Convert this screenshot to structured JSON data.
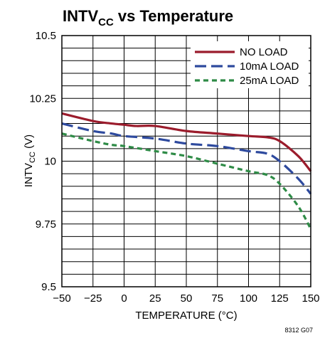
{
  "chart_data": {
    "type": "line",
    "title": {
      "main": "INTV",
      "sub": "CC",
      "rest": " vs Temperature"
    },
    "xlabel": "TEMPERATURE (°C)",
    "ylabel": {
      "main": "INTV",
      "sub": "CC",
      "rest": " (V)"
    },
    "xlim": [
      -50,
      150
    ],
    "ylim": [
      9.5,
      10.5
    ],
    "xticks": [
      -50,
      -25,
      0,
      25,
      50,
      75,
      100,
      125,
      150
    ],
    "xtick_labels": [
      "−50",
      "−25",
      "0",
      "25",
      "50",
      "75",
      "100",
      "125",
      "150"
    ],
    "yticks": [
      9.5,
      9.75,
      10,
      10.25,
      10.5
    ],
    "ytick_labels": [
      "9.5",
      "9.75",
      "10",
      "10.25",
      "10.5"
    ],
    "grid": true,
    "legend_position": "top-right",
    "figure_id": "8312 G07",
    "series": [
      {
        "name": "NO LOAD",
        "color": "#9b1c2c",
        "dash": "solid",
        "x": [
          -50,
          -25,
          -10,
          0,
          10,
          25,
          50,
          75,
          100,
          115,
          125,
          140,
          150
        ],
        "y": [
          10.19,
          10.16,
          10.15,
          10.145,
          10.14,
          10.14,
          10.12,
          10.11,
          10.1,
          10.095,
          10.08,
          10.02,
          9.96
        ]
      },
      {
        "name": "10mA LOAD",
        "color": "#2e4a9e",
        "dash": "long",
        "x": [
          -50,
          -25,
          -10,
          0,
          25,
          50,
          75,
          100,
          115,
          125,
          140,
          150
        ],
        "y": [
          10.15,
          10.12,
          10.11,
          10.1,
          10.09,
          10.07,
          10.06,
          10.04,
          10.03,
          10.0,
          9.93,
          9.87
        ]
      },
      {
        "name": "25mA LOAD",
        "color": "#2e8b46",
        "dash": "short",
        "x": [
          -50,
          -25,
          -10,
          0,
          25,
          50,
          75,
          100,
          115,
          125,
          140,
          150
        ],
        "y": [
          10.11,
          10.08,
          10.065,
          10.06,
          10.04,
          10.02,
          9.99,
          9.96,
          9.945,
          9.91,
          9.82,
          9.73
        ]
      }
    ]
  }
}
